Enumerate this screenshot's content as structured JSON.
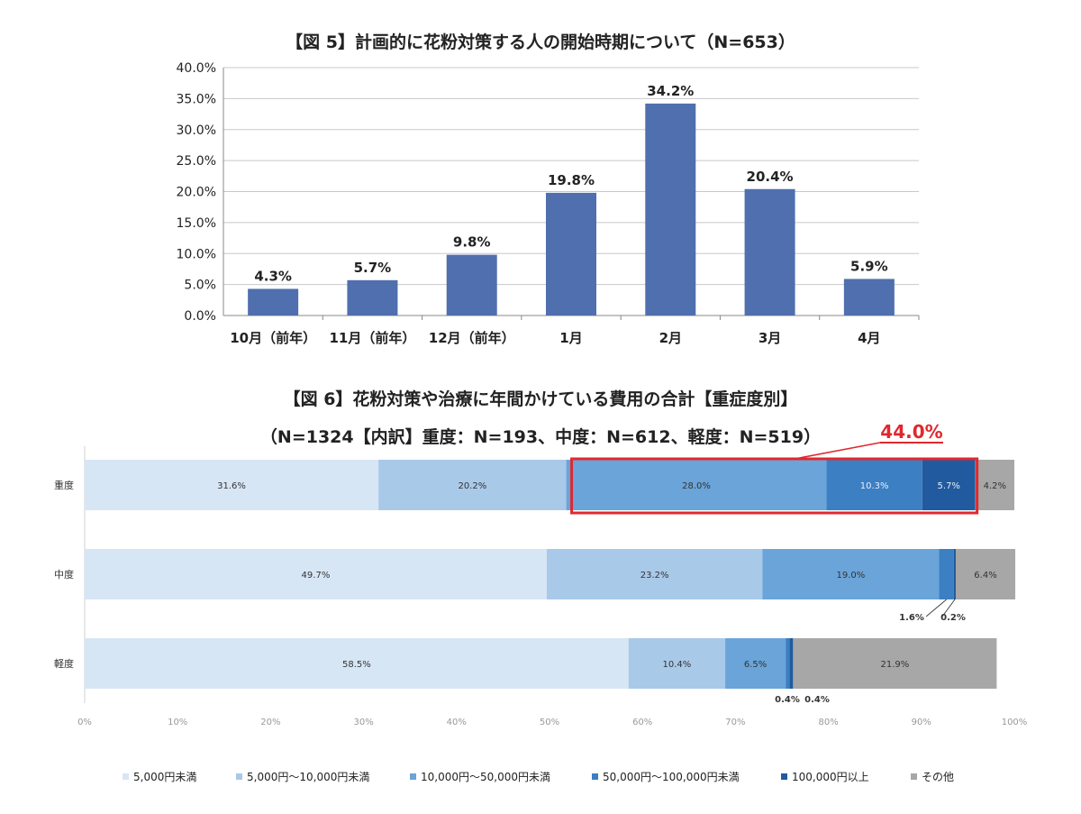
{
  "chart_data": [
    {
      "type": "bar",
      "title": "【図 5】計画的に花粉対策する人の開始時期について（N=653）",
      "categories": [
        "10月（前年）",
        "11月（前年）",
        "12月（前年）",
        "1月",
        "2月",
        "3月",
        "4月"
      ],
      "values": [
        4.3,
        5.7,
        9.8,
        19.8,
        34.2,
        20.4,
        5.9
      ],
      "value_labels": [
        "4.3%",
        "5.7%",
        "9.8%",
        "19.8%",
        "34.2%",
        "20.4%",
        "5.9%"
      ],
      "ylim": [
        0,
        40
      ],
      "yticks": [
        "0.0%",
        "5.0%",
        "10.0%",
        "15.0%",
        "20.0%",
        "25.0%",
        "30.0%",
        "35.0%",
        "40.0%"
      ],
      "grid": true,
      "color": "#4f6fae"
    },
    {
      "type": "bar",
      "orientation": "horizontal",
      "stacked": true,
      "title": "【図 6】花粉対策や治療に年間かけている費用の合計【重症度別】",
      "subtitle": "（N=1324【内訳】重度：N=193、中度：N=612、軽度：N=519）",
      "categories": [
        "重度",
        "中度",
        "軽度"
      ],
      "series": [
        {
          "name": "5,000円未満",
          "values": [
            31.6,
            49.7,
            58.5
          ],
          "color": "#d7e6f5"
        },
        {
          "name": "5,000円～10,000円未満",
          "values": [
            20.2,
            23.2,
            10.4
          ],
          "color": "#a9c9e9"
        },
        {
          "name": "10,000円～50,000円未満",
          "values": [
            28.0,
            19.0,
            6.5
          ],
          "color": "#6aa4d9"
        },
        {
          "name": "50,000円～100,000円未満",
          "values": [
            10.3,
            1.6,
            0.4
          ],
          "color": "#3c7fc2"
        },
        {
          "name": "100,000円以上",
          "values": [
            5.7,
            0.2,
            0.4
          ],
          "color": "#215a9e"
        },
        {
          "name": "その他",
          "values": [
            4.2,
            6.4,
            21.9
          ],
          "color": "#a7a7a7"
        }
      ],
      "segment_labels": [
        [
          "31.6%",
          "20.2%",
          "28.0%",
          "10.3%",
          "5.7%",
          "4.2%"
        ],
        [
          "49.7%",
          "23.2%",
          "19.0%",
          "1.6%",
          "0.2%",
          "6.4%"
        ],
        [
          "58.5%",
          "10.4%",
          "6.5%",
          "0.4%",
          "0.4%",
          "21.9%"
        ]
      ],
      "xlim": [
        0,
        100
      ],
      "xticks": [
        "0%",
        "10%",
        "20%",
        "30%",
        "40%",
        "50%",
        "60%",
        "70%",
        "80%",
        "90%",
        "100%"
      ],
      "legend": "bottom",
      "highlight": {
        "row": "重度",
        "from_series": 2,
        "to_series": 4,
        "label": "44.0%",
        "color": "#e0282e"
      }
    }
  ]
}
